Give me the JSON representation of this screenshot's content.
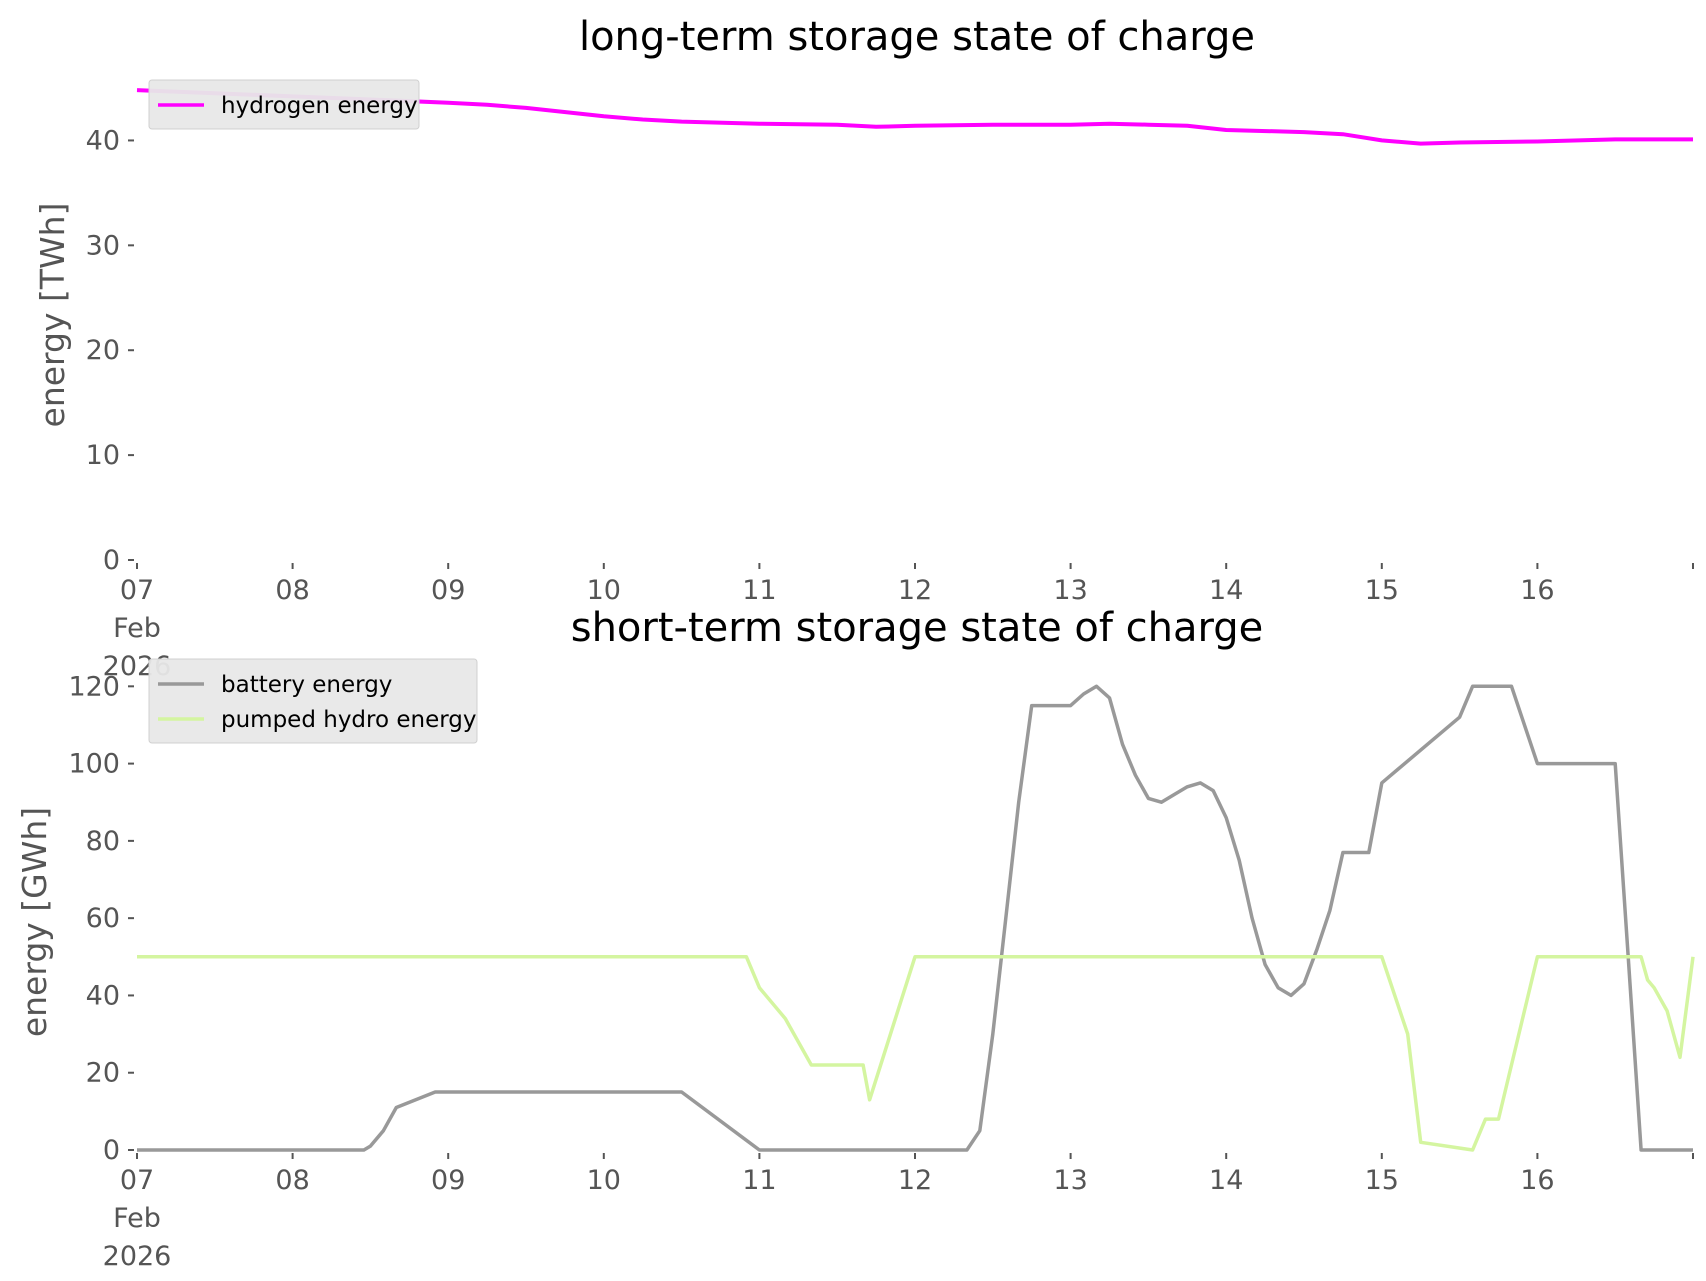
{
  "chart_data": [
    {
      "type": "line",
      "title": "long-term storage state of charge",
      "xlabel": "",
      "ylabel": "energy [TWh]",
      "ylim": [
        0,
        45
      ],
      "xlim": [
        "2026-02-07",
        "2026-02-17"
      ],
      "y_ticks": [
        "0",
        "10",
        "20",
        "30",
        "40"
      ],
      "x_ticks": [
        "07\nFeb\n2026",
        "08",
        "09",
        "10",
        "11",
        "12",
        "13",
        "14",
        "15",
        "16"
      ],
      "grid": false,
      "legend_position": "upper left",
      "series": [
        {
          "name": "hydrogen energy",
          "color": "#ff00ff",
          "x": [
            "2026-02-07 00:00",
            "2026-02-07 12:00",
            "2026-02-08 00:00",
            "2026-02-08 12:00",
            "2026-02-09 00:00",
            "2026-02-09 06:00",
            "2026-02-09 12:00",
            "2026-02-10 00:00",
            "2026-02-10 06:00",
            "2026-02-10 12:00",
            "2026-02-11 00:00",
            "2026-02-11 12:00",
            "2026-02-11 18:00",
            "2026-02-12 00:00",
            "2026-02-12 12:00",
            "2026-02-13 00:00",
            "2026-02-13 06:00",
            "2026-02-13 12:00",
            "2026-02-13 18:00",
            "2026-02-14 00:00",
            "2026-02-14 12:00",
            "2026-02-14 18:00",
            "2026-02-15 00:00",
            "2026-02-15 06:00",
            "2026-02-15 12:00",
            "2026-02-16 00:00",
            "2026-02-16 12:00",
            "2026-02-17 00:00"
          ],
          "y": [
            44.8,
            44.5,
            44.2,
            43.9,
            43.6,
            43.4,
            43.1,
            42.3,
            42.0,
            41.8,
            41.6,
            41.5,
            41.3,
            41.4,
            41.5,
            41.5,
            41.6,
            41.5,
            41.4,
            41.0,
            40.8,
            40.6,
            40.0,
            39.7,
            39.8,
            39.9,
            40.1,
            40.1
          ]
        }
      ]
    },
    {
      "type": "line",
      "title": "short-term storage state of charge",
      "xlabel": "",
      "ylabel": "energy [GWh]",
      "ylim": [
        0,
        125
      ],
      "xlim": [
        "2026-02-07",
        "2026-02-17"
      ],
      "y_ticks": [
        "0",
        "20",
        "40",
        "60",
        "80",
        "100",
        "120"
      ],
      "x_ticks": [
        "07\nFeb\n2026",
        "08",
        "09",
        "10",
        "11",
        "12",
        "13",
        "14",
        "15",
        "16"
      ],
      "grid": false,
      "legend_position": "upper left",
      "series": [
        {
          "name": "battery energy",
          "color": "#999999",
          "x": [
            "2026-02-07 00:00",
            "2026-02-08 11:00",
            "2026-02-08 12:00",
            "2026-02-08 14:00",
            "2026-02-08 16:00",
            "2026-02-08 22:00",
            "2026-02-08 23:00",
            "2026-02-09 00:00",
            "2026-02-10 12:00",
            "2026-02-11 00:00",
            "2026-02-11 16:00",
            "2026-02-11 17:00",
            "2026-02-11 18:00",
            "2026-02-11 20:00",
            "2026-02-11 22:00",
            "2026-02-12 00:00",
            "2026-02-12 03:00",
            "2026-02-12 05:00",
            "2026-02-12 06:00",
            "2026-02-12 08:00",
            "2026-02-12 10:00",
            "2026-02-12 12:00",
            "2026-02-12 14:00",
            "2026-02-12 16:00",
            "2026-02-12 18:00",
            "2026-02-12 20:00",
            "2026-02-12 22:00",
            "2026-02-13 00:00",
            "2026-02-13 02:00",
            "2026-02-13 04:00",
            "2026-02-13 06:00",
            "2026-02-13 08:00",
            "2026-02-13 10:00",
            "2026-02-13 12:00",
            "2026-02-13 14:00",
            "2026-02-13 16:00",
            "2026-02-13 18:00",
            "2026-02-13 20:00",
            "2026-02-13 22:00",
            "2026-02-14 00:00",
            "2026-02-14 02:00",
            "2026-02-14 04:00",
            "2026-02-14 06:00",
            "2026-02-14 08:00",
            "2026-02-14 10:00",
            "2026-02-14 12:00",
            "2026-02-14 14:00",
            "2026-02-14 16:00",
            "2026-02-14 18:00",
            "2026-02-14 20:00",
            "2026-02-14 22:00",
            "2026-02-15 00:00",
            "2026-02-15 12:00",
            "2026-02-15 14:00",
            "2026-02-15 15:00",
            "2026-02-15 16:00",
            "2026-02-15 18:00",
            "2026-02-15 20:00",
            "2026-02-16 00:00",
            "2026-02-16 12:00",
            "2026-02-16 14:00",
            "2026-02-16 16:00",
            "2026-02-16 18:00",
            "2026-02-16 20:00",
            "2026-02-16 21:00",
            "2026-02-16 22:00",
            "2026-02-16 23:00",
            "2026-02-17 00:00"
          ],
          "y": [
            0,
            0,
            1,
            5,
            11,
            15,
            15,
            15,
            15,
            0,
            0,
            0,
            0,
            0,
            0,
            0,
            0,
            0,
            0,
            0,
            5,
            30,
            60,
            90,
            115,
            115,
            115,
            115,
            118,
            120,
            117,
            105,
            97,
            91,
            90,
            92,
            94,
            95,
            93,
            86,
            75,
            60,
            48,
            42,
            40,
            43,
            52,
            62,
            77,
            77,
            77,
            95,
            112,
            120,
            120,
            120,
            120,
            120,
            100,
            100,
            50,
            0,
            0,
            0,
            0,
            0,
            0,
            0
          ]
        },
        {
          "name": "pumped hydro energy",
          "color": "#d4f5a0",
          "x": [
            "2026-02-07 00:00",
            "2026-02-10 22:00",
            "2026-02-11 00:00",
            "2026-02-11 04:00",
            "2026-02-11 08:00",
            "2026-02-11 14:00",
            "2026-02-11 16:00",
            "2026-02-11 17:00",
            "2026-02-12 00:00",
            "2026-02-14 22:00",
            "2026-02-15 00:00",
            "2026-02-15 04:00",
            "2026-02-15 06:00",
            "2026-02-15 14:00",
            "2026-02-15 16:00",
            "2026-02-15 18:00",
            "2026-02-16 00:00",
            "2026-02-16 14:00",
            "2026-02-16 16:00",
            "2026-02-16 17:00",
            "2026-02-16 18:00",
            "2026-02-16 20:00",
            "2026-02-16 22:00",
            "2026-02-17 00:00"
          ],
          "y": [
            50,
            50,
            42,
            34,
            22,
            22,
            22,
            13,
            50,
            50,
            50,
            30,
            2,
            0,
            8,
            8,
            50,
            50,
            50,
            44,
            42,
            36,
            24,
            50
          ]
        }
      ]
    }
  ]
}
